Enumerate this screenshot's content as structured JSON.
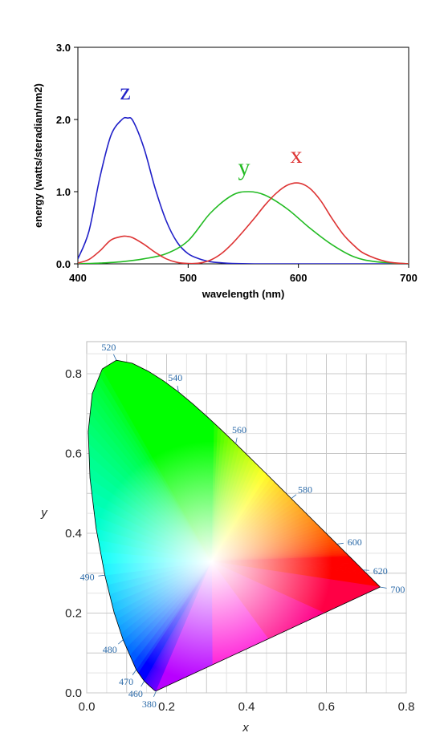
{
  "chart_data": [
    {
      "type": "line",
      "ylabel": "energy (watts/steradian/nm2)",
      "xlabel": "wavelength (nm)",
      "xlim": [
        400,
        700
      ],
      "ylim": [
        0,
        3
      ],
      "xticks": [
        "400",
        "500",
        "600",
        "700"
      ],
      "yticks": [
        "0.0",
        "1.0",
        "2.0",
        "3.0"
      ],
      "grid": false,
      "series": [
        {
          "name": "z",
          "color": "#2020c8",
          "x": [
            400,
            410,
            420,
            430,
            440,
            445,
            450,
            460,
            470,
            480,
            490,
            500,
            510,
            520,
            530,
            540,
            560,
            600,
            700
          ],
          "values": [
            0.07,
            0.45,
            1.2,
            1.78,
            2.0,
            2.02,
            1.98,
            1.6,
            1.05,
            0.6,
            0.3,
            0.14,
            0.07,
            0.03,
            0.015,
            0.005,
            0.0,
            0.0,
            0.0
          ]
        },
        {
          "name": "y",
          "color": "#22bb22",
          "x": [
            400,
            420,
            440,
            460,
            480,
            500,
            520,
            540,
            555,
            570,
            590,
            610,
            630,
            650,
            670,
            700
          ],
          "values": [
            0.0,
            0.01,
            0.03,
            0.07,
            0.14,
            0.32,
            0.7,
            0.95,
            1.0,
            0.95,
            0.76,
            0.5,
            0.27,
            0.1,
            0.03,
            0.0
          ]
        },
        {
          "name": "x",
          "color": "#dd3333",
          "x": [
            400,
            410,
            420,
            430,
            440,
            445,
            450,
            460,
            470,
            480,
            490,
            500,
            510,
            520,
            530,
            540,
            550,
            560,
            570,
            580,
            590,
            600,
            610,
            620,
            630,
            640,
            650,
            660,
            680,
            700
          ],
          "values": [
            0.01,
            0.06,
            0.18,
            0.33,
            0.38,
            0.38,
            0.36,
            0.27,
            0.16,
            0.07,
            0.02,
            0.005,
            0.01,
            0.05,
            0.14,
            0.28,
            0.45,
            0.63,
            0.82,
            0.98,
            1.09,
            1.12,
            1.05,
            0.88,
            0.64,
            0.42,
            0.26,
            0.14,
            0.03,
            0.0
          ]
        }
      ]
    },
    {
      "type": "scatter",
      "xlabel": "x",
      "ylabel": "y",
      "xlim": [
        0,
        0.8
      ],
      "ylim": [
        0,
        0.85
      ],
      "xticks": [
        "0.0",
        "0.2",
        "0.4",
        "0.6",
        "0.8"
      ],
      "yticks": [
        "0.0",
        "0.2",
        "0.4",
        "0.6",
        "0.8"
      ],
      "grid": true,
      "locus_labels": [
        {
          "nm": "520",
          "x": 0.074,
          "y": 0.834
        },
        {
          "nm": "540",
          "x": 0.23,
          "y": 0.754
        },
        {
          "nm": "560",
          "x": 0.373,
          "y": 0.624
        },
        {
          "nm": "580",
          "x": 0.512,
          "y": 0.487
        },
        {
          "nm": "600",
          "x": 0.627,
          "y": 0.373
        },
        {
          "nm": "620",
          "x": 0.691,
          "y": 0.308
        },
        {
          "nm": "700",
          "x": 0.735,
          "y": 0.265
        },
        {
          "nm": "490",
          "x": 0.045,
          "y": 0.295
        },
        {
          "nm": "480",
          "x": 0.091,
          "y": 0.133
        },
        {
          "nm": "470",
          "x": 0.124,
          "y": 0.058
        },
        {
          "nm": "460",
          "x": 0.144,
          "y": 0.03
        },
        {
          "nm": "380",
          "x": 0.174,
          "y": 0.005
        }
      ],
      "locus": {
        "x": [
          0.1741,
          0.1738,
          0.1733,
          0.1726,
          0.1714,
          0.1689,
          0.1644,
          0.1566,
          0.144,
          0.1241,
          0.0913,
          0.0687,
          0.0454,
          0.0235,
          0.0082,
          0.0039,
          0.0139,
          0.0389,
          0.0743,
          0.1142,
          0.1547,
          0.1929,
          0.2296,
          0.2658,
          0.3016,
          0.3373,
          0.3731,
          0.4087,
          0.4441,
          0.4788,
          0.5125,
          0.5448,
          0.5752,
          0.6029,
          0.627,
          0.6482,
          0.6658,
          0.6801,
          0.6915,
          0.7006,
          0.7079,
          0.714,
          0.719,
          0.723,
          0.726,
          0.7283,
          0.73,
          0.7311,
          0.732,
          0.7327,
          0.7334,
          0.734,
          0.7344,
          0.7346,
          0.7347
        ],
        "y": [
          0.005,
          0.0049,
          0.0048,
          0.0048,
          0.0051,
          0.0069,
          0.0109,
          0.0177,
          0.0297,
          0.0578,
          0.1327,
          0.2007,
          0.295,
          0.4127,
          0.5384,
          0.6548,
          0.7502,
          0.812,
          0.8338,
          0.8262,
          0.8059,
          0.7816,
          0.7543,
          0.7243,
          0.6923,
          0.6589,
          0.6245,
          0.5896,
          0.5547,
          0.5202,
          0.4866,
          0.4544,
          0.4242,
          0.3965,
          0.3725,
          0.3514,
          0.334,
          0.3197,
          0.3083,
          0.2993,
          0.292,
          0.2859,
          0.2809,
          0.277,
          0.274,
          0.2717,
          0.27,
          0.2689,
          0.268,
          0.2673,
          0.2666,
          0.266,
          0.2656,
          0.2654,
          0.2653
        ]
      }
    }
  ]
}
